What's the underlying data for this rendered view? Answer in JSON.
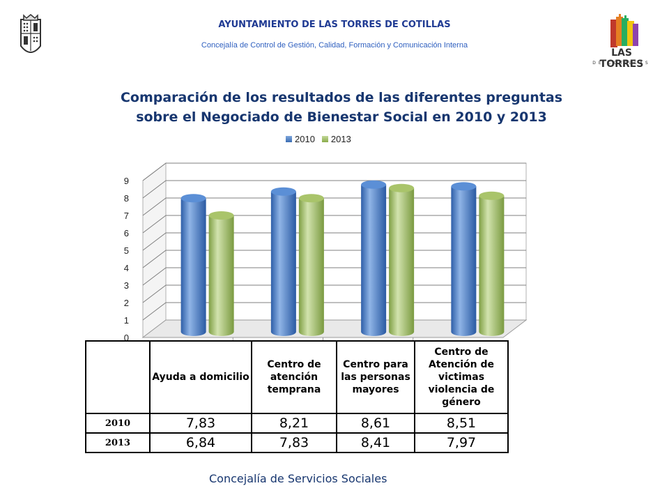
{
  "header": {
    "title": "AYUNTAMIENTO DE LAS TORRES DE COTILLAS",
    "subtitle": "Concejalía de Control de Gestión, Calidad, Formación y Comunicación Interna"
  },
  "logo": {
    "main": "LAS TORRES",
    "sub": "DE COTILLAS"
  },
  "colors": {
    "title": "#17366f",
    "series_2010": "#4f81bd",
    "series_2013": "#9bbb59"
  },
  "chart_data": {
    "type": "bar",
    "title_line1": "Comparación  de los resultados de las diferentes preguntas",
    "title_line2": "sobre el Negociado de Bienestar Social en 2010 y 2013",
    "categories": [
      "Ayuda a domicilio",
      "Centro de atención temprana",
      "Centro para las personas mayores",
      "Centro de Atención de victimas violencia de género"
    ],
    "series": [
      {
        "name": "2010",
        "values": [
          7.83,
          8.21,
          8.61,
          8.51
        ]
      },
      {
        "name": "2013",
        "values": [
          6.84,
          7.83,
          8.41,
          7.97
        ]
      }
    ],
    "ylim": [
      0,
      9
    ],
    "yticks": [
      "0",
      "1",
      "2",
      "3",
      "4",
      "5",
      "6",
      "7",
      "8",
      "9"
    ],
    "grid": true,
    "legend_position": "top"
  },
  "table": {
    "headers": [
      "Ayuda a domicilio",
      "Centro de atención temprana",
      "Centro para las personas mayores",
      "Centro de Atención de victimas violencia de género"
    ],
    "rows": [
      {
        "label": "2010",
        "values": [
          "7,83",
          "8,21",
          "8,61",
          "8,51"
        ]
      },
      {
        "label": "2013",
        "values": [
          "6,84",
          "7,83",
          "8,41",
          "7,97"
        ]
      }
    ]
  },
  "footer": {
    "text": "Concejalía de Servicios Sociales"
  }
}
